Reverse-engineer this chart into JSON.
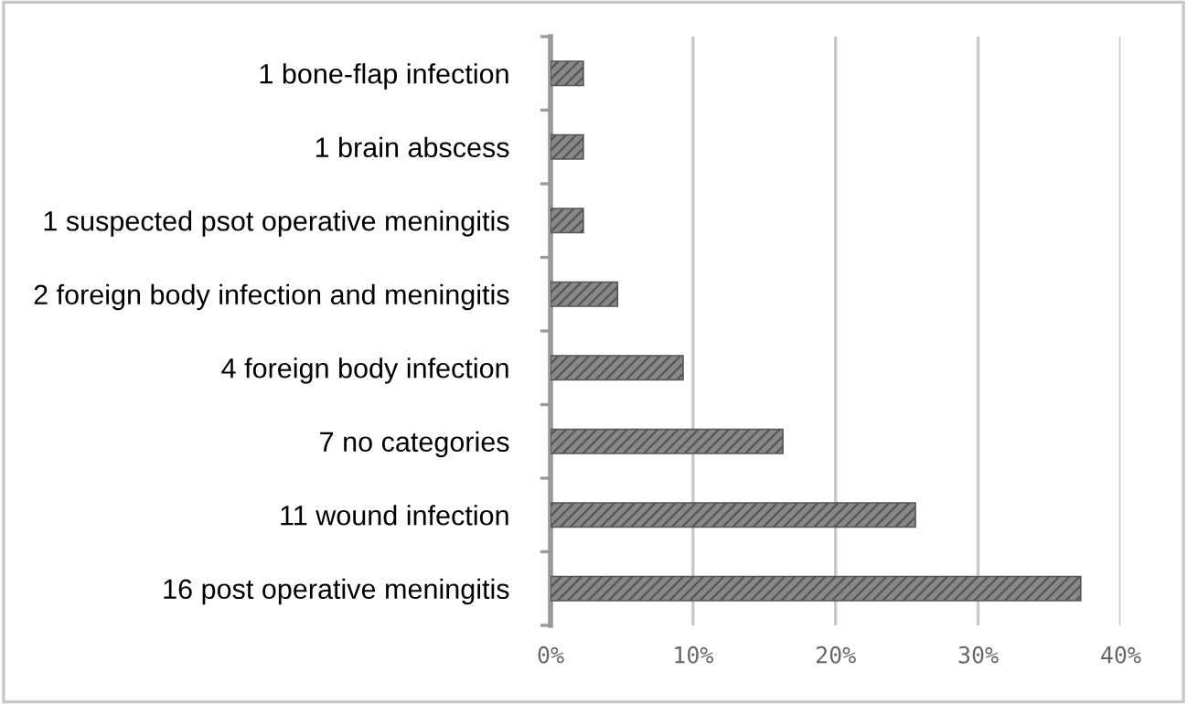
{
  "chart_data": {
    "type": "bar",
    "orientation": "horizontal",
    "categories": [
      "1 bone-flap infection",
      "1 brain abscess",
      "1 suspected psot operative meningitis",
      "2 foreign body infection and meningitis",
      "4 foreign body infection",
      "7 no categories",
      "11 wound infection",
      "16 post operative meningitis"
    ],
    "values": [
      2.3,
      2.3,
      2.3,
      4.7,
      9.3,
      16.3,
      25.6,
      37.2
    ],
    "color": "#555555",
    "xlim": [
      0,
      40
    ],
    "xticks": [
      {
        "value": 0,
        "label": "0%"
      },
      {
        "value": 10,
        "label": "10%"
      },
      {
        "value": 20,
        "label": "20%"
      },
      {
        "value": 30,
        "label": "30%"
      },
      {
        "value": 40,
        "label": "40%"
      }
    ],
    "grid": "x",
    "legend": false
  }
}
